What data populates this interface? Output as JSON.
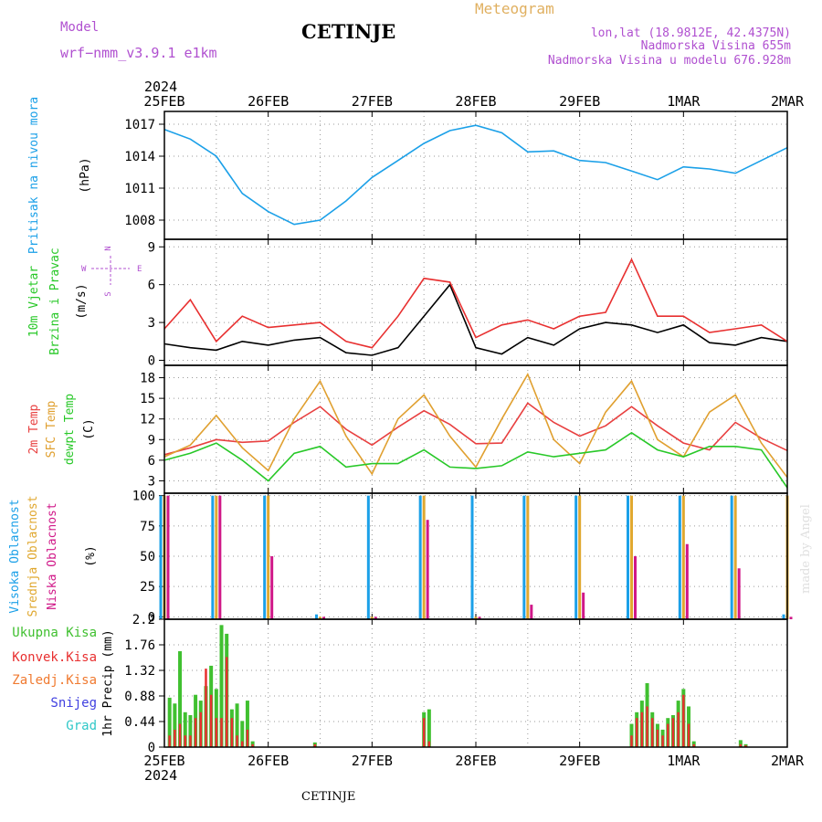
{
  "header": {
    "model_label": "Model",
    "model_name": "wrf−nmm_v3.9.1  e1km",
    "location": "CETINJE",
    "meteogram": "Meteogram",
    "lonlat": "lon,lat (18.9812E, 42.4375N)",
    "altitude": "Nadmorska Visina 655m",
    "model_altitude": "Nadmorska Visina u modelu 676.928m"
  },
  "footer": {
    "location": "CETINJE",
    "credit": "made by Angel"
  },
  "time_axis": {
    "year": "2024",
    "labels": [
      "25FEB",
      "26FEB",
      "27FEB",
      "28FEB",
      "29FEB",
      "1MAR",
      "2MAR"
    ]
  },
  "compass": {
    "n": "N",
    "s": "S",
    "e": "E",
    "w": "W"
  },
  "colors": {
    "pressure": "#1ba0e8",
    "wind_speed": "#000000",
    "wind_gust": "#e83030",
    "temp2m": "#e84040",
    "sfc_temp": "#e0a030",
    "dewpoint": "#28c828",
    "cloud_high": "#1ba0e8",
    "cloud_mid": "#e0a830",
    "cloud_low": "#d01888",
    "precip_total": "#40c030",
    "precip_conv": "#e83030",
    "precip_frozen": "#f07a30",
    "snow": "#4040e0",
    "hail": "#30c8c8"
  },
  "chart_data": [
    {
      "type": "line",
      "ylabel": [
        "Pritisak na nivou mora",
        "(hPa)"
      ],
      "yticks": [
        1008,
        1011,
        1014,
        1017
      ],
      "ylim": [
        1006.2,
        1018.2
      ],
      "x_days": [
        0,
        0.25,
        0.5,
        0.75,
        1.0,
        1.25,
        1.5,
        1.75,
        2.0,
        2.25,
        2.5,
        2.75,
        3.0,
        3.25,
        3.5,
        3.75,
        4.0,
        4.25,
        4.5,
        4.75,
        5.0,
        5.25,
        5.5,
        5.75,
        6.0
      ],
      "series": [
        {
          "values": [
            1016.5,
            1015.6,
            1014.0,
            1010.5,
            1008.8,
            1007.6,
            1008.0,
            1009.8,
            1012.0,
            1013.6,
            1015.2,
            1016.4,
            1016.9,
            1016.2,
            1014.4,
            1014.5,
            1013.6,
            1013.4,
            1012.6,
            1011.8,
            1013.0,
            1012.8,
            1012.4,
            1013.6,
            1014.8
          ]
        }
      ],
      "grid": true
    },
    {
      "type": "line",
      "ylabel": [
        "10m Vjetar",
        "Brzina i Pravac",
        "(m/s)"
      ],
      "yticks": [
        0,
        3,
        6,
        9
      ],
      "ylim": [
        -0.4,
        9.6
      ],
      "x_days": [
        0,
        0.25,
        0.5,
        0.75,
        1.0,
        1.25,
        1.5,
        1.75,
        2.0,
        2.25,
        2.5,
        2.75,
        3.0,
        3.25,
        3.5,
        3.75,
        4.0,
        4.25,
        4.5,
        4.75,
        5.0,
        5.25,
        5.5,
        5.75,
        6.0
      ],
      "series": [
        {
          "values": [
            1.3,
            1.0,
            0.8,
            1.5,
            1.2,
            1.6,
            1.8,
            0.6,
            0.4,
            1.0,
            3.5,
            6.0,
            1.0,
            0.5,
            1.8,
            1.2,
            2.5,
            3.0,
            2.8,
            2.2,
            2.8,
            1.4,
            1.2,
            1.8,
            1.5
          ]
        },
        {
          "values": [
            2.5,
            4.8,
            1.5,
            3.5,
            2.6,
            2.8,
            3.0,
            1.5,
            1.0,
            3.5,
            6.5,
            6.2,
            1.8,
            2.8,
            3.2,
            2.5,
            3.5,
            3.8,
            8.0,
            3.5,
            3.5,
            2.2,
            2.5,
            2.8,
            1.5
          ]
        }
      ],
      "grid": true
    },
    {
      "type": "line",
      "ylabel": [
        "2m Temp",
        "SFC Temp",
        "dewpt Temp",
        "(C)"
      ],
      "yticks": [
        3,
        6,
        9,
        12,
        15,
        18
      ],
      "ylim": [
        1.2,
        19.8
      ],
      "x_days": [
        0,
        0.25,
        0.5,
        0.75,
        1.0,
        1.25,
        1.5,
        1.75,
        2.0,
        2.25,
        2.5,
        2.75,
        3.0,
        3.25,
        3.5,
        3.75,
        4.0,
        4.25,
        4.5,
        4.75,
        5.0,
        5.25,
        5.5,
        5.75,
        6.0
      ],
      "series": [
        {
          "values": [
            6.8,
            7.8,
            9.0,
            8.6,
            8.8,
            11.5,
            13.8,
            10.5,
            8.2,
            10.8,
            13.2,
            11.2,
            8.4,
            8.5,
            14.3,
            11.5,
            9.5,
            11.0,
            13.8,
            11.0,
            8.5,
            7.5,
            11.5,
            9.2,
            7.4
          ]
        },
        {
          "values": [
            6.5,
            8.2,
            12.5,
            7.8,
            4.5,
            12.0,
            17.5,
            9.5,
            4.0,
            12.0,
            15.5,
            9.5,
            5.0,
            12.0,
            18.5,
            9.0,
            5.5,
            13.0,
            17.5,
            9.0,
            6.5,
            13.0,
            15.5,
            8.5,
            3.5
          ]
        },
        {
          "values": [
            6.0,
            7.0,
            8.5,
            6.0,
            3.0,
            7.0,
            8.0,
            5.0,
            5.5,
            5.5,
            7.5,
            5.0,
            4.8,
            5.2,
            7.2,
            6.5,
            7.0,
            7.5,
            10.0,
            7.5,
            6.5,
            8.0,
            8.0,
            7.5,
            2.0
          ]
        }
      ],
      "grid": true
    },
    {
      "type": "bar",
      "ylabel": [
        "Visoka Oblacnost",
        "Srednja Oblacnost",
        "Niska Oblacnost",
        "(%)"
      ],
      "yticks": [
        0,
        25,
        50,
        75,
        100
      ],
      "ylim": [
        -2,
        102
      ],
      "x_days": [
        0,
        0.5,
        1.0,
        1.5,
        2.0,
        2.5,
        3.0,
        3.5,
        4.0,
        4.5,
        5.0,
        5.5,
        6.0
      ],
      "series": [
        {
          "values": [
            100,
            100,
            100,
            2,
            100,
            100,
            100,
            100,
            100,
            100,
            100,
            100,
            2
          ]
        },
        {
          "values": [
            100,
            100,
            100,
            0,
            0,
            100,
            0,
            100,
            100,
            100,
            100,
            100,
            100
          ]
        },
        {
          "values": [
            100,
            100,
            50,
            0,
            0,
            80,
            0,
            10,
            20,
            50,
            60,
            40,
            0
          ]
        }
      ],
      "grid": true
    },
    {
      "type": "bar",
      "ylabel": [
        "Ukupna Kisa",
        "Konvek.Kisa",
        "Zaledj.Kisa",
        "Snijeg",
        "Grad",
        "1hr Precip",
        "(mm)"
      ],
      "yticks": [
        0,
        0.44,
        0.88,
        1.32,
        1.76,
        2.2
      ],
      "ylim": [
        0,
        2.2
      ],
      "x_days": [
        0.05,
        0.1,
        0.15,
        0.2,
        0.25,
        0.3,
        0.35,
        0.4,
        0.45,
        0.5,
        0.55,
        0.6,
        0.65,
        0.7,
        0.75,
        0.8,
        0.85,
        1.45,
        2.5,
        2.55,
        4.5,
        4.55,
        4.6,
        4.65,
        4.7,
        4.75,
        4.8,
        4.85,
        4.9,
        4.95,
        5.0,
        5.05,
        5.1,
        5.55,
        5.6
      ],
      "series": [
        {
          "values": [
            0.85,
            0.75,
            1.65,
            0.6,
            0.55,
            0.9,
            0.8,
            1.05,
            1.4,
            1.0,
            2.1,
            1.95,
            0.65,
            0.75,
            0.45,
            0.8,
            0.1,
            0.08,
            0.6,
            0.65,
            0.4,
            0.6,
            0.8,
            1.1,
            0.6,
            0.4,
            0.3,
            0.5,
            0.55,
            0.8,
            1.0,
            0.7,
            0.1,
            0.12,
            0.05
          ]
        },
        {
          "values": [
            0.2,
            0.3,
            0.4,
            0.2,
            0.2,
            0.5,
            0.6,
            1.35,
            0.9,
            0.5,
            0.5,
            1.55,
            0.5,
            0.2,
            0.1,
            0.3,
            0.05,
            0.05,
            0.5,
            0.1,
            0.2,
            0.5,
            0.6,
            0.7,
            0.5,
            0.3,
            0.2,
            0.4,
            0.5,
            0.6,
            0.9,
            0.4,
            0.05,
            0.05,
            0.03
          ]
        }
      ],
      "grid": true
    }
  ]
}
